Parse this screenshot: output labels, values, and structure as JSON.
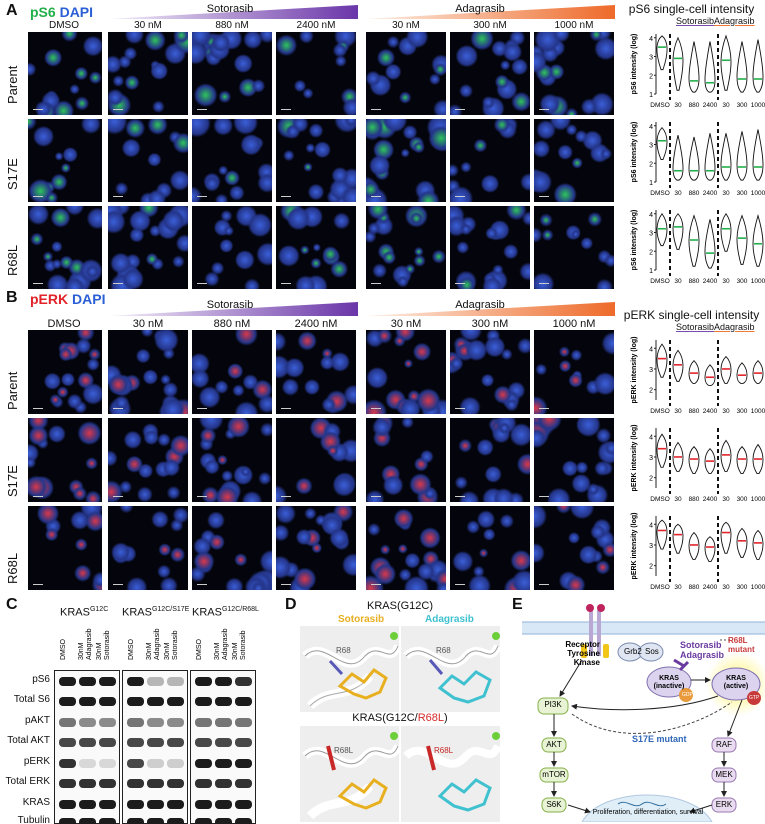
{
  "panels": {
    "A": "A",
    "B": "B",
    "C": "C",
    "D": "D",
    "E": "E"
  },
  "panelA": {
    "stain1": "pS6",
    "stain2": "DAPI",
    "color1": "#22b04a",
    "color2": "#2b5fd6",
    "dmso": "DMSO",
    "sotorasib": "Sotorasib",
    "adagrasib": "Adagrasib",
    "sotorasib_doses": [
      "30 nM",
      "880 nM",
      "2400 nM"
    ],
    "adagrasib_doses": [
      "30 nM",
      "300 nM",
      "1000 nM"
    ],
    "rows": [
      "Parent",
      "S17E",
      "R68L"
    ],
    "quant_title": "pS6 single-cell intensity",
    "ylabel": "pS6 intensity (log)"
  },
  "panelB": {
    "stain1": "pERK",
    "stain2": "DAPI",
    "color1": "#e2232a",
    "color2": "#2b5fd6",
    "dmso": "DMSO",
    "sotorasib": "Sotorasib",
    "adagrasib": "Adagrasib",
    "sotorasib_doses": [
      "30 nM",
      "880 nM",
      "2400 nM"
    ],
    "adagrasib_doses": [
      "30 nM",
      "300 nM",
      "1000 nM"
    ],
    "rows": [
      "Parent",
      "S17E",
      "R68L"
    ],
    "quant_title": "pERK single-cell intensity",
    "ylabel": "pERK intensity (log)"
  },
  "violin_common": {
    "group_sotorasib": "Sotorasib",
    "group_adagrasib": "Adagrasib",
    "x_labels": [
      "DMSO",
      "30",
      "880",
      "2400",
      "30",
      "300",
      "1000"
    ]
  },
  "chart_data": [
    {
      "type": "violin",
      "panel": "A",
      "row": "Parent",
      "ylabel": "pS6 intensity (log)",
      "y_ticks": [
        1,
        2,
        3,
        4
      ],
      "ylim": [
        1,
        4.2
      ],
      "categories": [
        "DMSO",
        "30",
        "880",
        "2400",
        "30",
        "300",
        "1000"
      ],
      "medians": [
        3.5,
        2.9,
        1.7,
        1.6,
        2.8,
        1.8,
        1.8
      ],
      "low": [
        2.3,
        1.2,
        1.1,
        1.1,
        1.2,
        1.1,
        1.1
      ],
      "high": [
        4.1,
        4.0,
        3.8,
        3.8,
        4.1,
        3.8,
        3.9
      ],
      "median_color": "#22b04a"
    },
    {
      "type": "violin",
      "panel": "A",
      "row": "S17E",
      "ylabel": "pS6 intensity (log)",
      "y_ticks": [
        1,
        2,
        3,
        4
      ],
      "ylim": [
        1,
        4.2
      ],
      "categories": [
        "DMSO",
        "30",
        "880",
        "2400",
        "30",
        "300",
        "1000"
      ],
      "medians": [
        3.2,
        1.6,
        1.6,
        1.6,
        1.8,
        1.8,
        1.8
      ],
      "low": [
        2.2,
        1.1,
        1.1,
        1.1,
        1.1,
        1.1,
        1.1
      ],
      "high": [
        3.9,
        3.5,
        3.4,
        3.6,
        3.6,
        3.7,
        3.8
      ],
      "median_color": "#22b04a"
    },
    {
      "type": "violin",
      "panel": "A",
      "row": "R68L",
      "ylabel": "pS6 intensity (log)",
      "y_ticks": [
        1,
        2,
        3,
        4
      ],
      "ylim": [
        1,
        4.2
      ],
      "categories": [
        "DMSO",
        "30",
        "880",
        "2400",
        "30",
        "300",
        "1000"
      ],
      "medians": [
        3.2,
        3.3,
        2.6,
        1.9,
        3.2,
        2.7,
        2.4
      ],
      "low": [
        2.3,
        2.1,
        1.2,
        1.1,
        2.0,
        1.3,
        1.2
      ],
      "high": [
        4.0,
        4.0,
        3.9,
        3.7,
        4.0,
        3.9,
        3.9
      ],
      "median_color": "#22b04a"
    },
    {
      "type": "violin",
      "panel": "B",
      "row": "Parent",
      "ylabel": "pERK intensity (log)",
      "y_ticks": [
        2,
        3,
        4
      ],
      "ylim": [
        1.5,
        4.4
      ],
      "categories": [
        "DMSO",
        "30",
        "880",
        "2400",
        "30",
        "300",
        "1000"
      ],
      "medians": [
        3.5,
        3.2,
        2.8,
        2.6,
        3.0,
        2.7,
        2.8
      ],
      "low": [
        2.6,
        2.4,
        2.3,
        2.2,
        2.3,
        2.3,
        2.3
      ],
      "high": [
        4.2,
        3.9,
        3.4,
        3.2,
        3.6,
        3.3,
        3.4
      ],
      "median_color": "#e2232a"
    },
    {
      "type": "violin",
      "panel": "B",
      "row": "S17E",
      "ylabel": "pERK intensity (log)",
      "y_ticks": [
        2,
        3,
        4
      ],
      "ylim": [
        1.5,
        4.4
      ],
      "categories": [
        "DMSO",
        "30",
        "880",
        "2400",
        "30",
        "300",
        "1000"
      ],
      "medians": [
        3.4,
        3.0,
        2.9,
        2.8,
        3.1,
        2.9,
        2.9
      ],
      "low": [
        2.5,
        2.3,
        2.2,
        2.2,
        2.3,
        2.2,
        2.2
      ],
      "high": [
        4.1,
        3.7,
        3.5,
        3.4,
        3.8,
        3.5,
        3.6
      ],
      "median_color": "#e2232a"
    },
    {
      "type": "violin",
      "panel": "B",
      "row": "R68L",
      "ylabel": "pERK intensity (log)",
      "y_ticks": [
        2,
        3,
        4
      ],
      "ylim": [
        1.5,
        4.4
      ],
      "categories": [
        "DMSO",
        "30",
        "880",
        "2400",
        "30",
        "300",
        "1000"
      ],
      "medians": [
        3.7,
        3.5,
        3.0,
        2.9,
        3.6,
        3.2,
        3.1
      ],
      "low": [
        2.8,
        2.6,
        2.3,
        2.2,
        2.6,
        2.4,
        2.3
      ],
      "high": [
        4.2,
        4.0,
        3.6,
        3.4,
        4.1,
        3.8,
        3.7
      ],
      "median_color": "#e2232a"
    }
  ],
  "panelC": {
    "titles": [
      {
        "base": "KRAS",
        "sup": "G12C"
      },
      {
        "base": "KRAS",
        "sup": "G12C/S17E"
      },
      {
        "base": "KRAS",
        "sup": "G12C/R68L"
      }
    ],
    "lanes": [
      "DMSO",
      "30nM Adagrasib",
      "30nM Sotorasib"
    ],
    "proteins": [
      "pS6",
      "Total S6",
      "pAKT",
      "Total AKT",
      "pERK",
      "Total ERK",
      "KRAS",
      "Tubulin"
    ]
  },
  "panelD": {
    "title_top": "KRAS(G12C)",
    "title_bottom_prefix": "KRAS(G12C/",
    "title_bottom_mut": "R68L",
    "title_bottom_suffix": ")",
    "drug1": "Sotorasib",
    "drug2": "Adagrasib",
    "drug1_color": "#e8b020",
    "drug2_color": "#3fc1d0",
    "res_wt": "R68",
    "res_mut": "R68L"
  },
  "panelE": {
    "receptor": "Receptor Tyrosine Kinase",
    "grb2": "Grb2",
    "sos": "Sos",
    "kras_inactive": "KRAS (inactive)",
    "kras_active": "KRAS (active)",
    "gdp": "GDP",
    "gtp": "GTP",
    "drugs": [
      "Sotorasib",
      "Adagrasib"
    ],
    "r68l": "R68L mutant",
    "s17e": "S17E mutant",
    "pi3k": "PI3K",
    "akt": "AKT",
    "mtor": "mTOR",
    "s6k": "S6K",
    "raf": "RAF",
    "mek": "MEK",
    "erk": "ERK",
    "nucleus": "Proliferation, differentiation, survival"
  }
}
